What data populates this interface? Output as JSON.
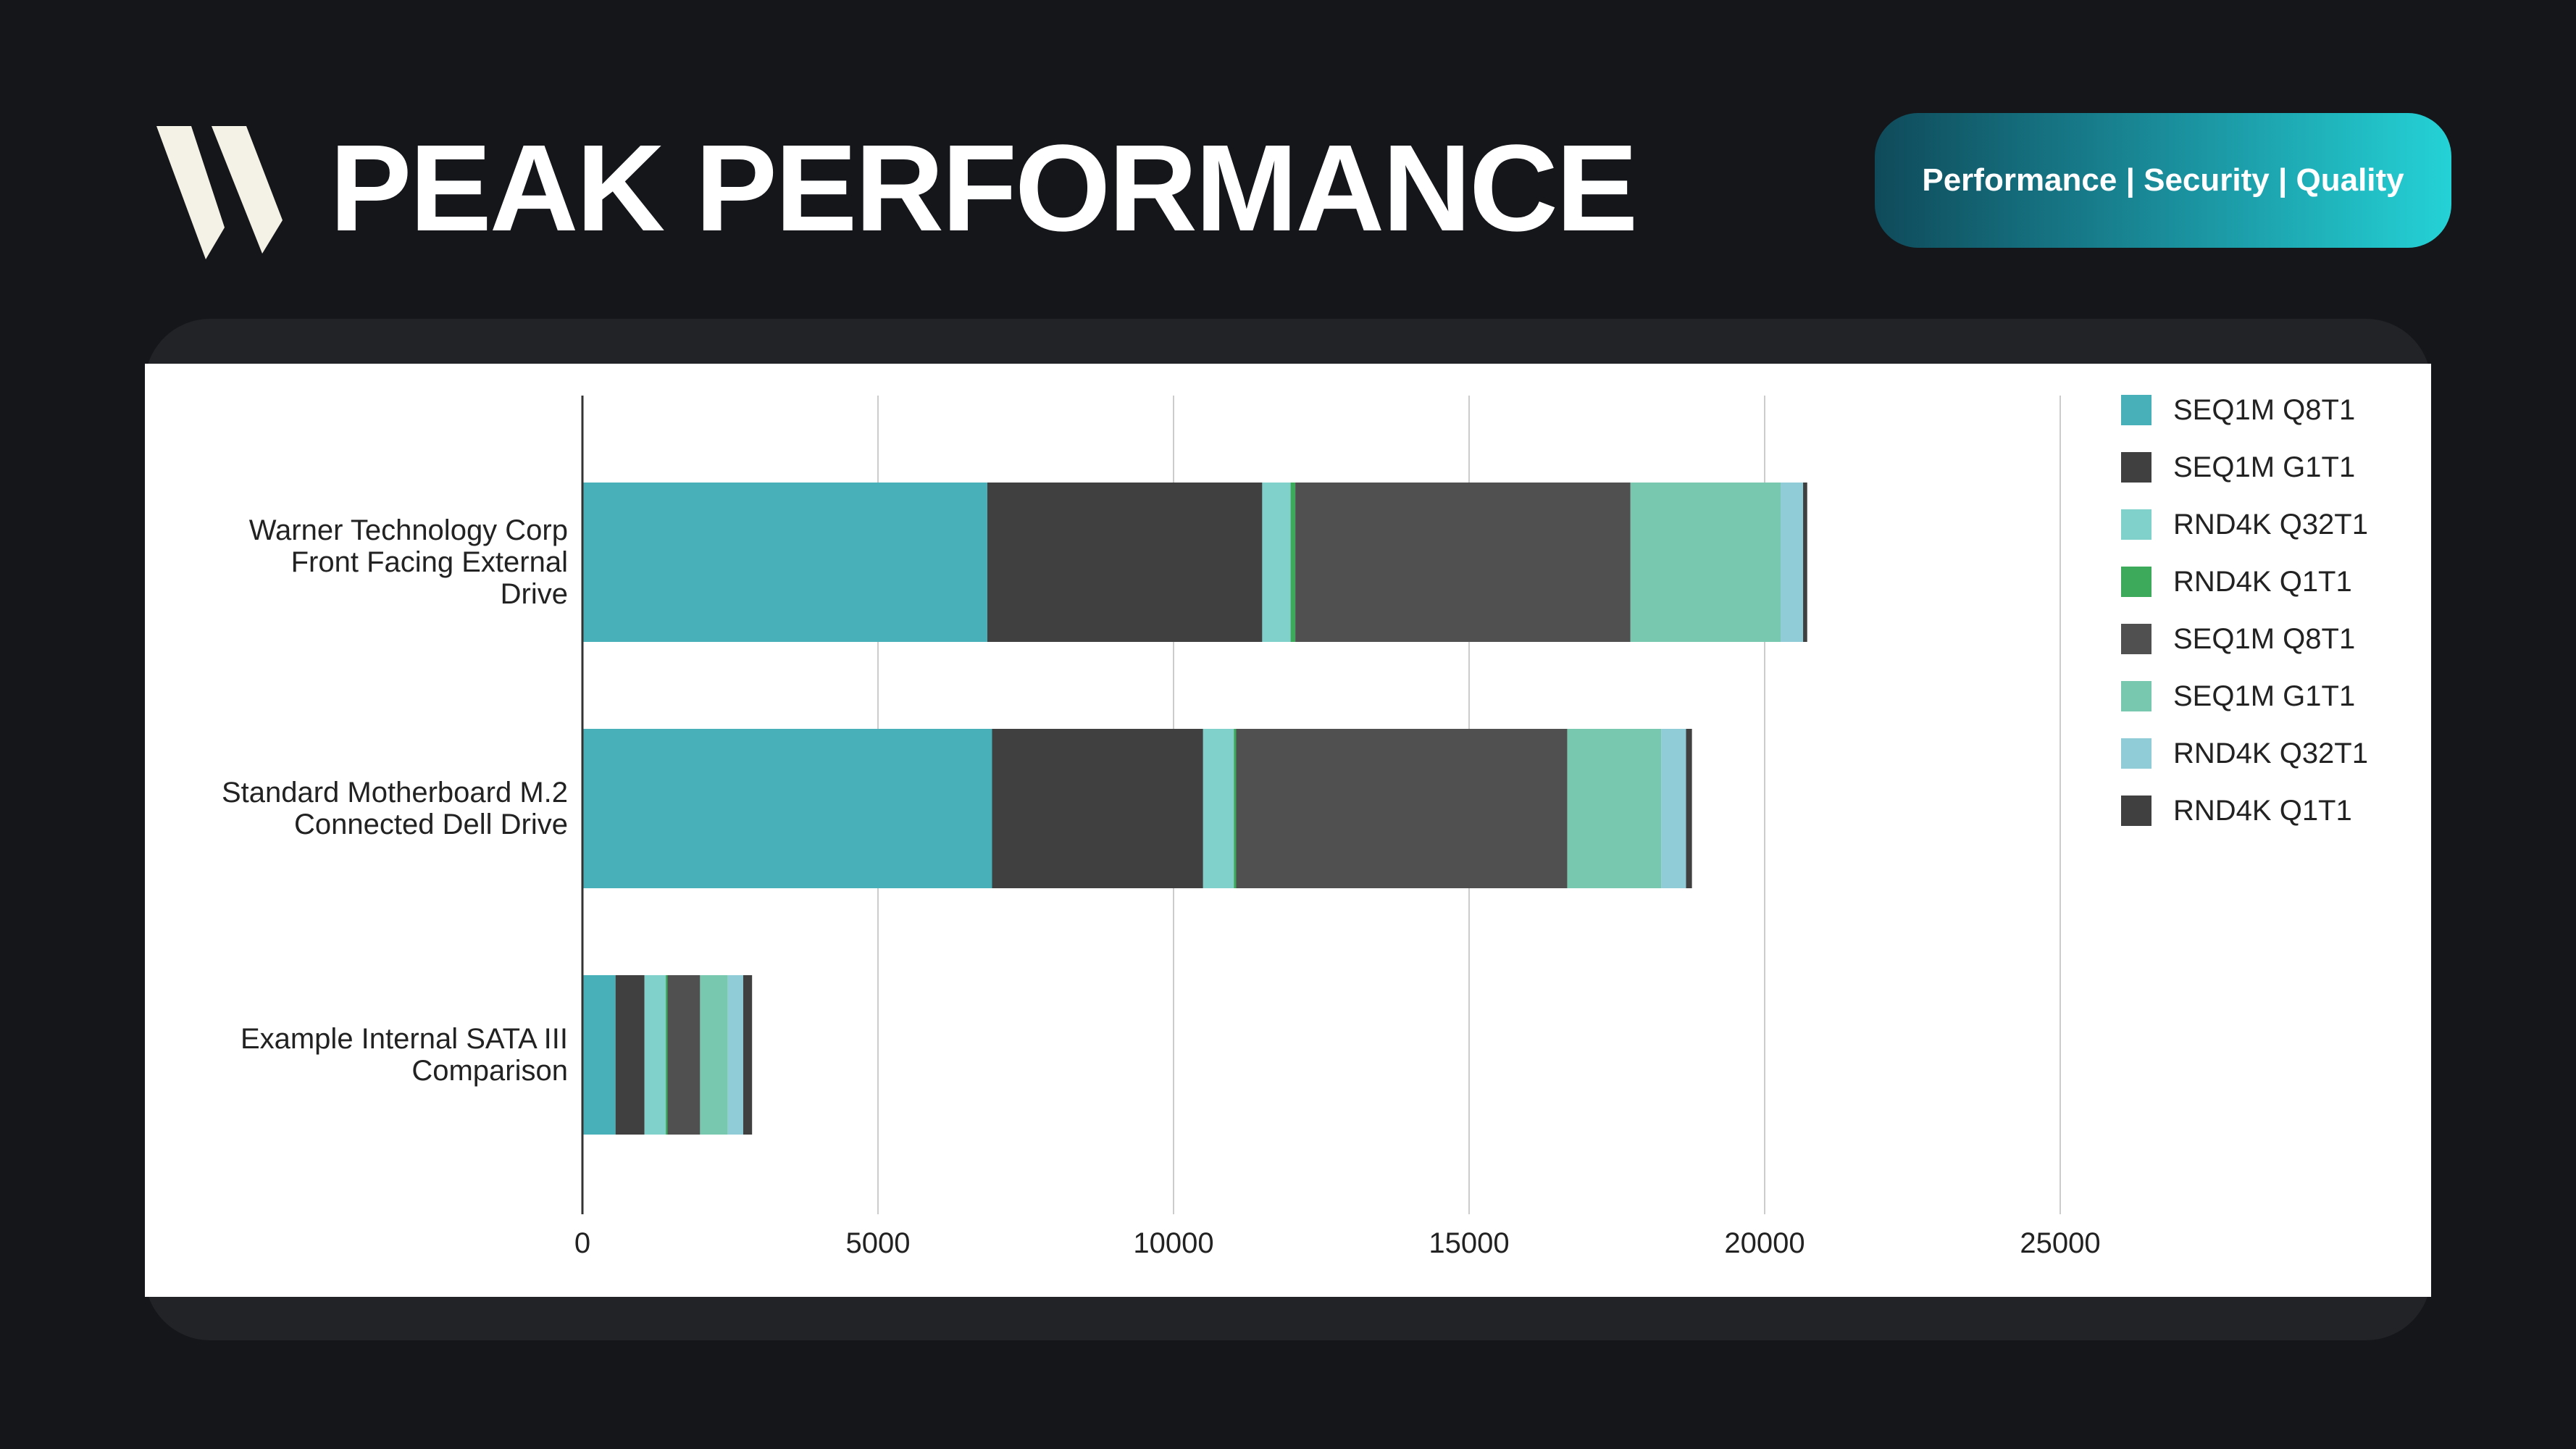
{
  "header": {
    "title": "PEAK PERFORMANCE",
    "tagline": "Performance | Security | Quality",
    "logo_icon": "stacked-slashes-logo"
  },
  "colors": {
    "background": "#15161a",
    "panel": "#ffffff",
    "tagline_gradient": [
      "#0f4a5a",
      "#24d2d6"
    ]
  },
  "chart_data": {
    "type": "bar",
    "orientation": "horizontal",
    "stacked": true,
    "categories": [
      "Warner Technology Corp Front Facing External Drive",
      "Standard Motherboard M.2 Connected Dell Drive",
      "Example Internal SATA III Comparison"
    ],
    "category_lines": [
      [
        "Warner Technology Corp",
        "Front Facing External",
        "Drive"
      ],
      [
        "Standard Motherboard M.2",
        "Connected Dell Drive"
      ],
      [
        "Example Internal SATA III",
        "Comparison"
      ]
    ],
    "series": [
      {
        "name": "SEQ1M Q8T1",
        "color": "#48b0b8",
        "values": [
          6850,
          6930,
          560
        ]
      },
      {
        "name": "SEQ1M G1T1",
        "color": "#404040",
        "values": [
          4650,
          3570,
          490
        ]
      },
      {
        "name": "RND4K Q32T1",
        "color": "#80d0cc",
        "values": [
          480,
          520,
          360
        ]
      },
      {
        "name": "RND4K Q1T1",
        "color": "#3caa5a",
        "values": [
          80,
          40,
          30
        ]
      },
      {
        "name": "SEQ1M Q8T1",
        "color": "#505050",
        "values": [
          5670,
          5600,
          550
        ]
      },
      {
        "name": "SEQ1M G1T1",
        "color": "#78c8b0",
        "values": [
          2540,
          1590,
          470
        ]
      },
      {
        "name": "RND4K Q32T1",
        "color": "#90cbd8",
        "values": [
          380,
          420,
          260
        ]
      },
      {
        "name": "RND4K Q1T1",
        "color": "#404040",
        "values": [
          70,
          100,
          150
        ]
      }
    ],
    "x_ticks": [
      0,
      5000,
      10000,
      15000,
      20000,
      25000
    ],
    "xlim": [
      0,
      25000
    ],
    "grid": true,
    "legend_position": "right"
  }
}
